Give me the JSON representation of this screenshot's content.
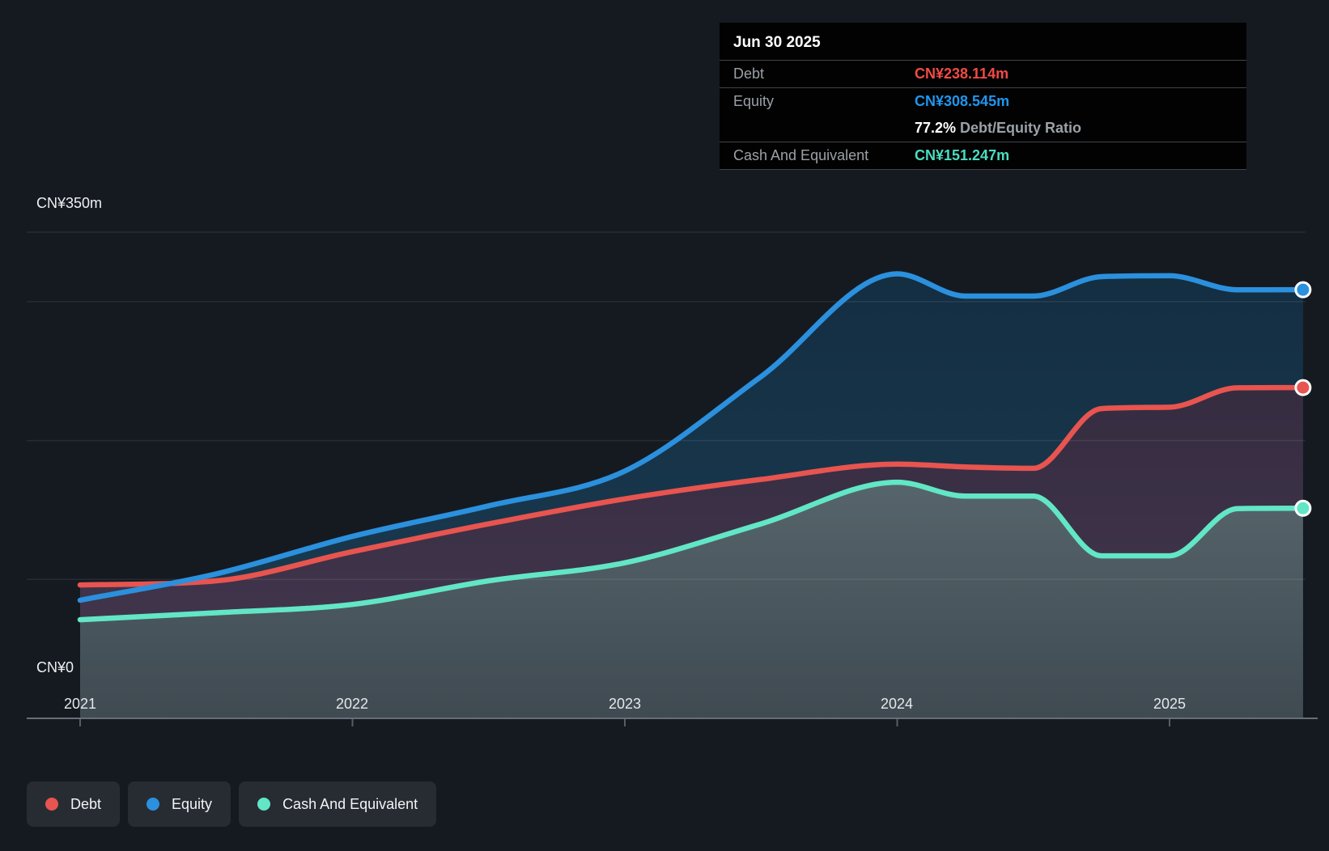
{
  "page": {
    "background": "#151a21"
  },
  "tooltip": {
    "title": "Jun 30 2025",
    "debt_label": "Debt",
    "debt_value": "CN¥238.114m",
    "debt_color": "#f04b45",
    "equity_label": "Equity",
    "equity_value": "CN¥308.545m",
    "equity_color": "#1e96f0",
    "ratio_value": "77.2%",
    "ratio_label": " Debt/Equity Ratio",
    "cash_label": "Cash And Equivalent",
    "cash_value": "CN¥151.247m",
    "cash_color": "#4cdcc0"
  },
  "axis": {
    "y_top_label": "CN¥350m",
    "y_zero_label": "CN¥0",
    "x_ticks": [
      "2021",
      "2022",
      "2023",
      "2024",
      "2025"
    ]
  },
  "legend": {
    "items": [
      {
        "label": "Debt",
        "color": "#e8544f"
      },
      {
        "label": "Equity",
        "color": "#2b90dd"
      },
      {
        "label": "Cash And Equivalent",
        "color": "#62e6c6"
      }
    ]
  },
  "chart_data": {
    "type": "area",
    "title": "Debt to Equity History and Analysis",
    "x_years": [
      2021.0,
      2021.5,
      2022.0,
      2022.5,
      2023.0,
      2023.5,
      2024.0,
      2024.25,
      2024.5,
      2024.75,
      2025.0,
      2025.25,
      2025.49
    ],
    "x_tick_years": [
      2021,
      2022,
      2023,
      2024,
      2025
    ],
    "y_unit": "CN¥ millions",
    "ylim": [
      0,
      350
    ],
    "gridline_values_m": [
      100,
      200,
      300,
      350
    ],
    "last_point_date": "Jun 30 2025",
    "series": [
      {
        "name": "Debt",
        "color": "#e8544f",
        "fill_top": "#362c40",
        "fill_bottom": "#443850",
        "values": [
          96,
          99,
          120,
          140,
          158,
          172,
          183,
          181,
          180,
          223,
          224,
          238,
          238.114
        ]
      },
      {
        "name": "Equity",
        "color": "#2b90dd",
        "fill_top": "#142e42",
        "fill_bottom": "#1b3d53",
        "values": [
          85,
          104,
          131,
          153,
          178,
          246,
          320,
          304,
          304,
          318,
          318.6,
          308.5,
          308.545
        ]
      },
      {
        "name": "Cash And Equivalent",
        "color": "#62e6c6",
        "fill_top": "#56656b",
        "fill_bottom": "#3f4a51",
        "values": [
          71,
          76,
          82,
          99,
          112,
          140,
          170,
          160,
          160,
          117,
          117,
          151,
          151.247
        ]
      }
    ]
  },
  "layout_note": "gridlines unlabeled at 100/200/300m; labeled lines CN¥350m top and CN¥0 baseline"
}
